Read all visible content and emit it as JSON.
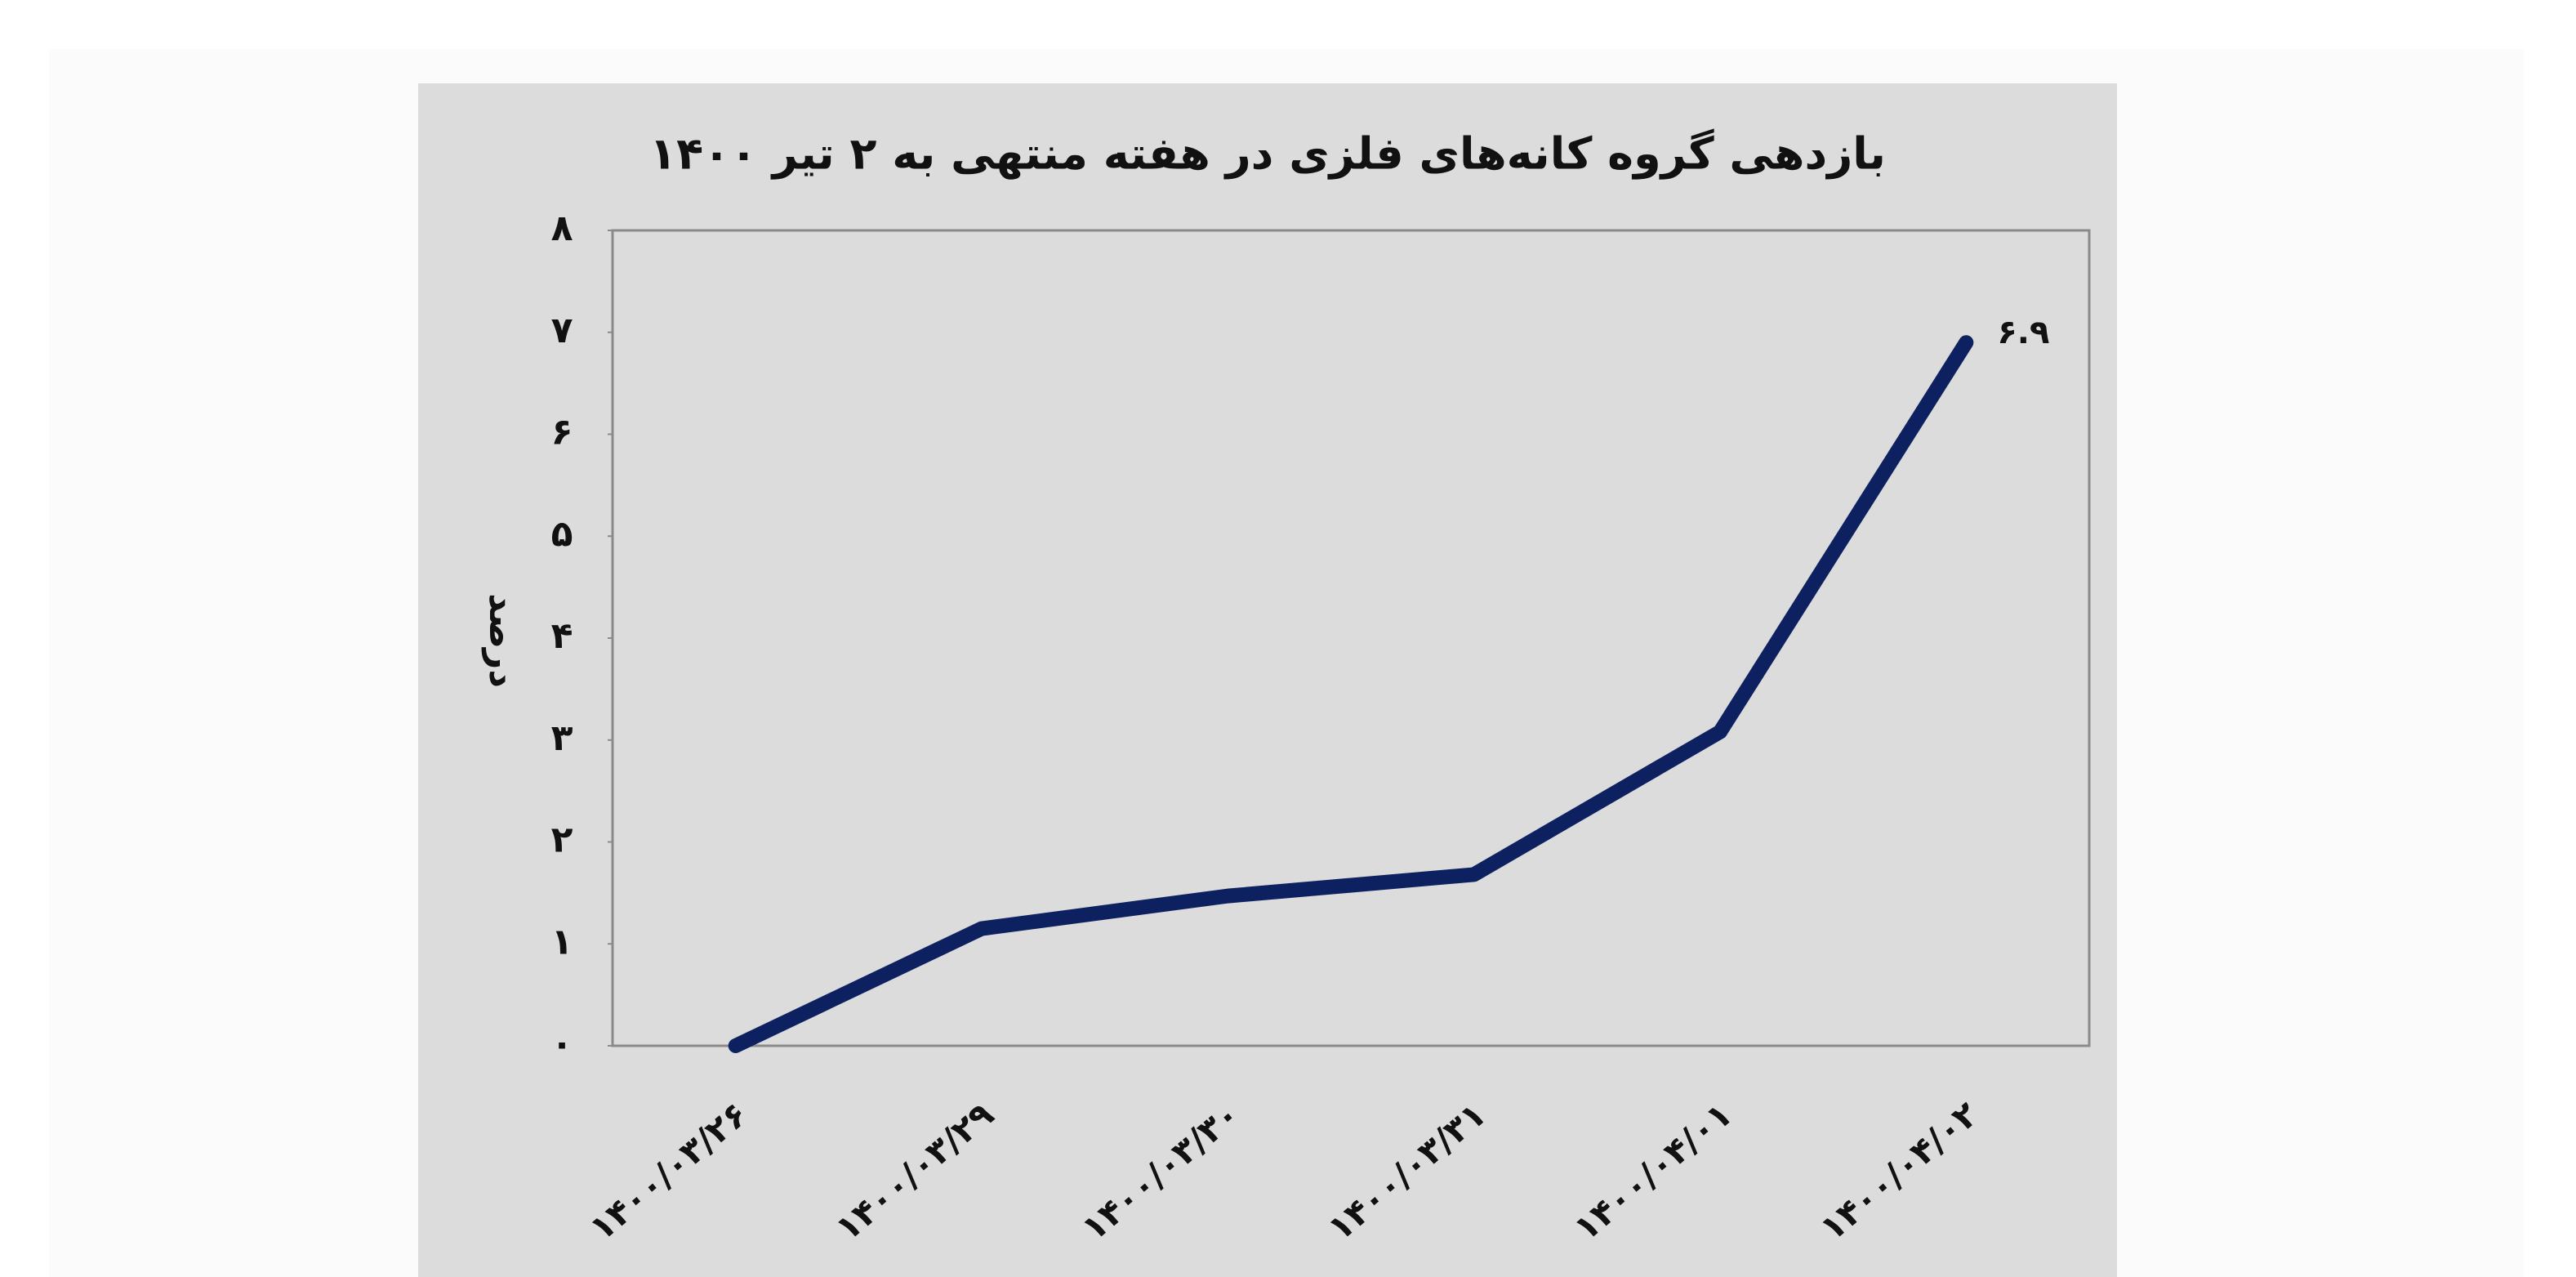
{
  "chart_data": {
    "type": "line",
    "title": "بازدهی گروه کانه‌های فلزی در هفته منتهی به ۲ تیر ۱۴۰۰",
    "y_label": "درصد",
    "categories": [
      "۱۴۰۰/۰۳/۲۶",
      "۱۴۰۰/۰۳/۲۹",
      "۱۴۰۰/۰۳/۳۰",
      "۱۴۰۰/۰۳/۳۱",
      "۱۴۰۰/۰۴/۰۱",
      "۱۴۰۰/۰۴/۰۲"
    ],
    "series": [
      {
        "color": "#0d2160",
        "values": [
          0,
          1.15,
          1.47,
          1.68,
          3.08,
          6.9
        ],
        "value_labels": [
          null,
          null,
          null,
          null,
          null,
          "۶.۹"
        ]
      }
    ],
    "ylim": [
      0,
      8
    ],
    "yticks": [
      {
        "value": 0,
        "label": "۰"
      },
      {
        "value": 1,
        "label": "۱"
      },
      {
        "value": 2,
        "label": "۲"
      },
      {
        "value": 3,
        "label": "۳"
      },
      {
        "value": 4,
        "label": "۴"
      },
      {
        "value": 5,
        "label": "۵"
      },
      {
        "value": 6,
        "label": "۶"
      },
      {
        "value": 7,
        "label": "۷"
      },
      {
        "value": 8,
        "label": "۸"
      }
    ],
    "grid": false
  }
}
